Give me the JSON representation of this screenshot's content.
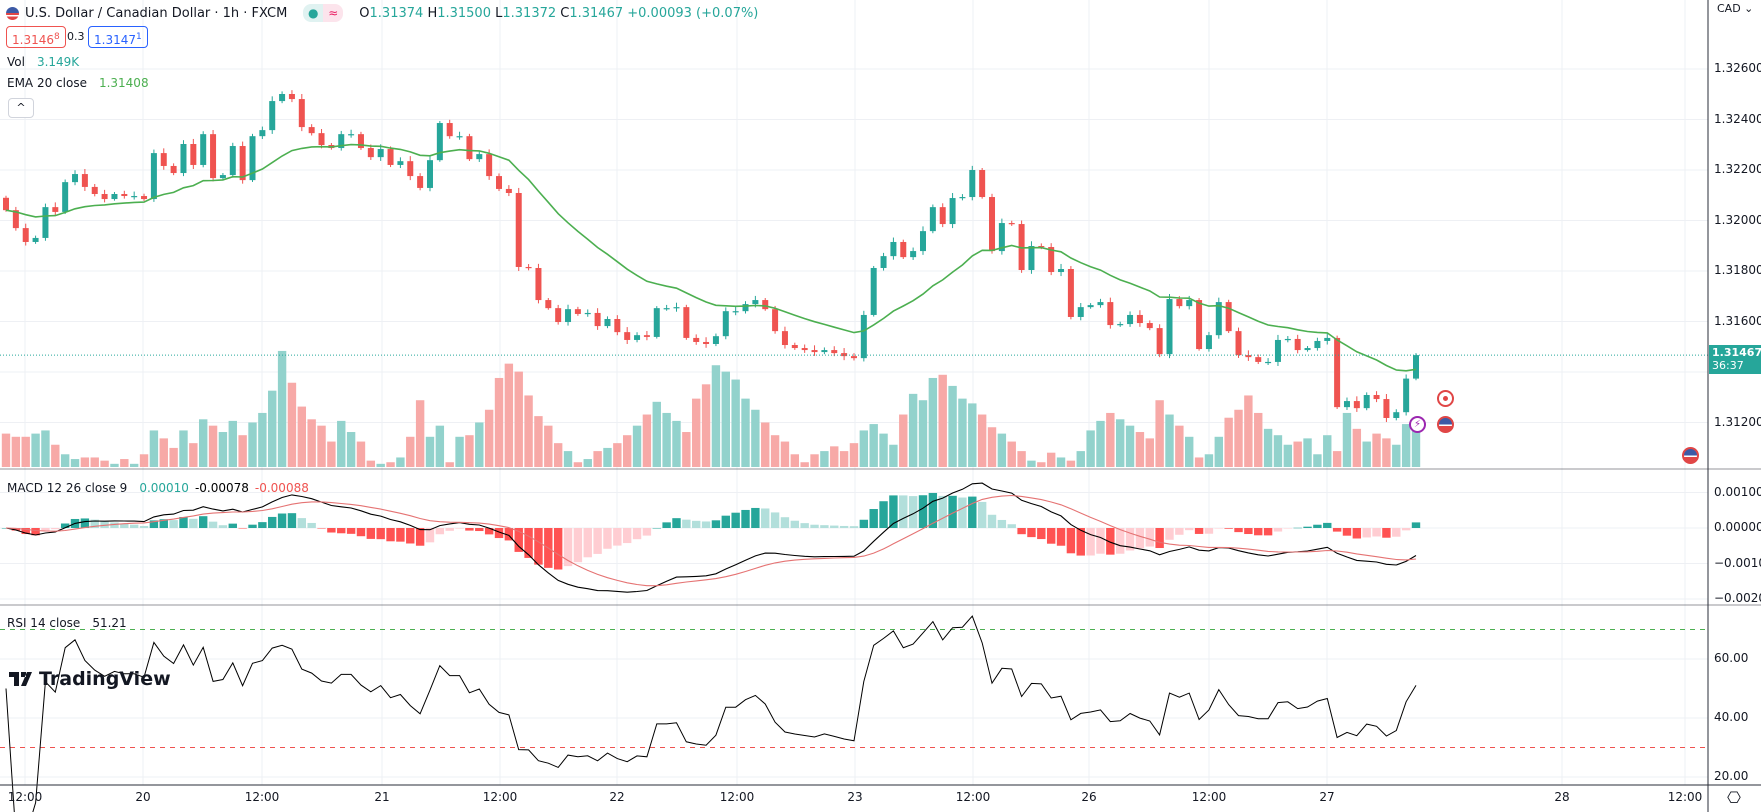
{
  "header": {
    "title": "U.S. Dollar / Canadian Dollar · 1h · FXCM",
    "status_dot": "●",
    "status_wave": "≈",
    "ohlc": {
      "o_label": "O",
      "o": "1.31374",
      "h_label": "H",
      "h": "1.31500",
      "l_label": "L",
      "l": "1.31372",
      "c_label": "C",
      "c": "1.31467",
      "change": "+0.00093 (+0.07%)"
    },
    "sell_price": "1.3146",
    "sell_sup": "8",
    "spread": "0.3",
    "buy_price": "1.3147",
    "buy_sup": "1",
    "currency": "CAD ⌄",
    "collapse": "^"
  },
  "indicators": {
    "vol_label": "Vol",
    "vol_value": "3.149K",
    "ema_label": "EMA 20 close",
    "ema_value": "1.31408",
    "macd_label": "MACD 12 26 close 9",
    "macd_hist": "0.00010",
    "macd_macd": "-0.00078",
    "macd_signal": "-0.00088",
    "rsi_label": "RSI 14 close",
    "rsi_value": "51.21"
  },
  "current_price": {
    "value": "1.31467",
    "countdown": "36:37"
  },
  "logo": "TradingView",
  "colors": {
    "up": "#26a69a",
    "down": "#ef5350",
    "ema": "#4caf50",
    "vol_up": "#92d2cc",
    "vol_down": "#f7a9a7",
    "macd": "#000000",
    "signal": "#e57373"
  },
  "chart_data": {
    "type": "candlestick",
    "title": "U.S. Dollar / Canadian Dollar · 1h · FXCM",
    "first_open": 1.3209,
    "close": [
      1.32041,
      1.3197,
      1.31915,
      1.31931,
      1.32053,
      1.32034,
      1.32152,
      1.32184,
      1.32133,
      1.32105,
      1.32085,
      1.32105,
      1.32097,
      1.32097,
      1.32085,
      1.32267,
      1.32216,
      1.32188,
      1.32303,
      1.3222,
      1.32342,
      1.32168,
      1.3218,
      1.32295,
      1.3216,
      1.32334,
      1.32358,
      1.32473,
      1.32501,
      1.32481,
      1.3237,
      1.32346,
      1.32299,
      1.32287,
      1.32342,
      1.32342,
      1.32287,
      1.32251,
      1.32283,
      1.3222,
      1.32235,
      1.32176,
      1.32129,
      1.32239,
      1.32386,
      1.32334,
      1.32334,
      1.32243,
      1.32263,
      1.32176,
      1.32125,
      1.32109,
      1.31816,
      1.31812,
      1.31685,
      1.31653,
      1.31598,
      1.31649,
      1.3163,
      1.31634,
      1.31582,
      1.3161,
      1.31558,
      1.31527,
      1.31546,
      1.31539,
      1.31653,
      1.31653,
      1.31657,
      1.31535,
      1.31519,
      1.31511,
      1.31542,
      1.31641,
      1.31641,
      1.31669,
      1.31685,
      1.31649,
      1.31562,
      1.31507,
      1.31495,
      1.31487,
      1.31479,
      1.31487,
      1.31475,
      1.31463,
      1.31455,
      1.31626,
      1.31812,
      1.31859,
      1.31915,
      1.31855,
      1.31879,
      1.31958,
      1.32053,
      1.31986,
      1.32089,
      1.32093,
      1.322,
      1.32093,
      1.31879,
      1.3199,
      1.31986,
      1.31804,
      1.31899,
      1.31895,
      1.31796,
      1.31808,
      1.31618,
      1.31657,
      1.31665,
      1.31677,
      1.31586,
      1.3159,
      1.31626,
      1.31594,
      1.31574,
      1.31471,
      1.31689,
      1.31661,
      1.31685,
      1.31491,
      1.31546,
      1.31677,
      1.31562,
      1.31467,
      1.31459,
      1.3144,
      1.3144,
      1.31527,
      1.31531,
      1.31487,
      1.31495,
      1.31523,
      1.31535,
      1.31261,
      1.31285,
      1.31257,
      1.31309,
      1.31293,
      1.31218,
      1.31241,
      1.31374,
      1.31467
    ],
    "volume_k": [
      2.1,
      1.9,
      1.9,
      2.1,
      2.3,
      1.4,
      0.8,
      0.5,
      0.6,
      0.6,
      0.4,
      0.2,
      0.5,
      0.2,
      0.8,
      2.3,
      1.8,
      1.2,
      2.3,
      1.5,
      3.0,
      2.6,
      2.2,
      2.9,
      2.0,
      2.8,
      3.4,
      4.8,
      7.3,
      5.3,
      3.8,
      3.0,
      2.6,
      1.6,
      2.9,
      2.2,
      1.6,
      0.4,
      0.2,
      0.3,
      0.6,
      1.9,
      4.2,
      1.9,
      2.6,
      0.3,
      1.9,
      2.0,
      2.8,
      3.6,
      5.6,
      6.5,
      6.0,
      4.5,
      3.2,
      2.6,
      1.5,
      1.0,
      0.3,
      0.5,
      1.0,
      1.2,
      1.5,
      2.0,
      2.6,
      3.3,
      4.1,
      3.4,
      2.9,
      2.2,
      4.3,
      5.2,
      6.4,
      6.0,
      5.5,
      4.3,
      3.6,
      2.8,
      2.0,
      1.6,
      0.8,
      0.3,
      0.8,
      1.0,
      1.3,
      1.0,
      1.5,
      2.3,
      2.7,
      2.1,
      1.4,
      3.3,
      4.6,
      4.2,
      5.6,
      5.8,
      5.1,
      4.3,
      4.0,
      3.3,
      2.5,
      2.1,
      1.6,
      1.0,
      0.4,
      0.3,
      0.9,
      0.6,
      0.4,
      1.0,
      2.3,
      2.9,
      3.4,
      3.0,
      2.6,
      2.2,
      1.8,
      4.2,
      3.3,
      2.6,
      1.9,
      0.6,
      0.8,
      1.9,
      3.1,
      3.6,
      4.5,
      3.4,
      2.4,
      2.0,
      1.4,
      1.6,
      1.8,
      0.8,
      2.0,
      1.0,
      3.4,
      2.4,
      1.6,
      2.1,
      1.8,
      1.4,
      2.7,
      3.1,
      3.149
    ],
    "ylim": [
      1.3112,
      1.327
    ],
    "y_ticks": [
      "1.32600",
      "1.32400",
      "1.32200",
      "1.32000",
      "1.31800",
      "1.31600",
      "1.31200"
    ],
    "x_ticks": [
      "12:00",
      "20",
      "12:00",
      "21",
      "12:00",
      "22",
      "12:00",
      "23",
      "12:00",
      "26",
      "12:00",
      "27",
      "28",
      "12:00"
    ],
    "ema_period": 20,
    "macd": {
      "fast": 12,
      "slow": 26,
      "signal": 9,
      "y_ticks": [
        "0.00100",
        "0.00000",
        "−0.00100",
        "−0.00200"
      ]
    },
    "rsi": {
      "period": 14,
      "y_ticks": [
        "60.00",
        "40.00",
        "20.00"
      ],
      "upper": 70,
      "lower": 30
    }
  }
}
